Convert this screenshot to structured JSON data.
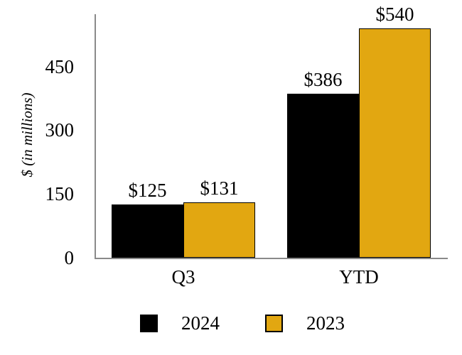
{
  "chart_data": {
    "type": "bar",
    "title": "",
    "categories": [
      "Q3",
      "YTD"
    ],
    "series": [
      {
        "name": "2024",
        "values": [
          125,
          386
        ],
        "labels": [
          "$125",
          "$386"
        ],
        "color": "#000000"
      },
      {
        "name": "2023",
        "values": [
          131,
          540
        ],
        "labels": [
          "$131",
          "$540"
        ],
        "color": "#E2A711"
      }
    ],
    "xlabel": "",
    "ylabel": "$ (in millions)",
    "yticks": [
      0,
      150,
      300,
      450
    ],
    "ylim": [
      0,
      575
    ],
    "grid": false,
    "legend_position": "bottom",
    "axis_color": "#8A8A8A",
    "text_color": "#000000",
    "background": "#FFFFFF"
  }
}
